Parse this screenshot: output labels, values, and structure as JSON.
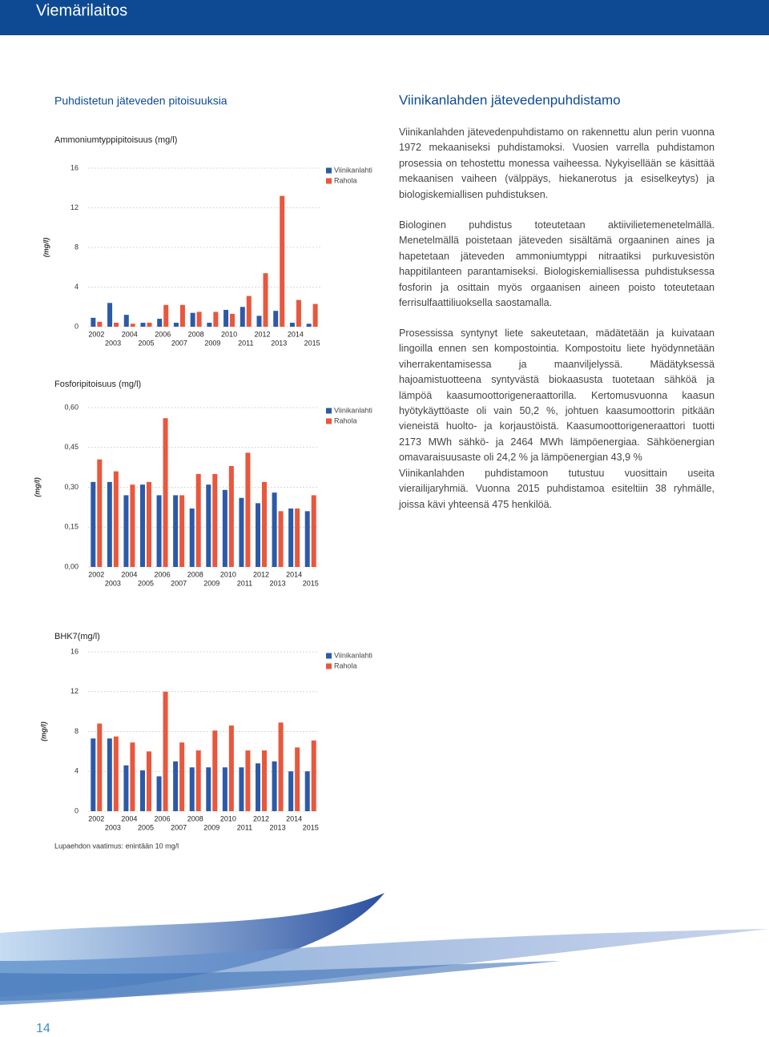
{
  "header": {
    "title": "Viemärilaitos"
  },
  "left": {
    "heading": "Puhdistetun jäteveden pitoisuuksia"
  },
  "chart_data": [
    {
      "type": "bar",
      "title": "Ammoniumtyppipitoisuus (mg/l)",
      "y_label": "(mg/l)",
      "categories": [
        "2002",
        "2003",
        "2004",
        "2005",
        "2006",
        "2007",
        "2008",
        "2009",
        "2010",
        "2011",
        "2012",
        "2013",
        "2014",
        "2015"
      ],
      "series": [
        {
          "name": "Viinikanlahti",
          "color": "#2c5aa8",
          "values": [
            0.9,
            2.4,
            1.2,
            0.4,
            0.8,
            0.4,
            1.4,
            0.4,
            1.7,
            2.0,
            1.1,
            1.6,
            0.4,
            0.3
          ]
        },
        {
          "name": "Rahola",
          "color": "#e9573c",
          "values": [
            0.5,
            0.4,
            0.3,
            0.4,
            2.2,
            2.2,
            1.5,
            1.5,
            1.3,
            3.1,
            5.4,
            13.2,
            2.7,
            2.3
          ]
        }
      ],
      "ylim": [
        0,
        16
      ],
      "yticks": [
        0,
        4,
        8,
        12,
        16
      ],
      "grid": true,
      "legend": "top-right"
    },
    {
      "type": "bar",
      "title": "Fosforipitoisuus (mg/l)",
      "y_label": "(mg/l)",
      "categories": [
        "2002",
        "2003",
        "2004",
        "2005",
        "2006",
        "2007",
        "2008",
        "2009",
        "2010",
        "2011",
        "2012",
        "2013",
        "2014",
        "2015"
      ],
      "series": [
        {
          "name": "Viinikanlahti",
          "color": "#2c5aa8",
          "values": [
            0.32,
            0.32,
            0.27,
            0.31,
            0.27,
            0.27,
            0.22,
            0.31,
            0.29,
            0.26,
            0.24,
            0.28,
            0.22,
            0.21
          ]
        },
        {
          "name": "Rahola",
          "color": "#e9573c",
          "values": [
            0.405,
            0.36,
            0.31,
            0.32,
            0.56,
            0.27,
            0.35,
            0.35,
            0.38,
            0.43,
            0.32,
            0.21,
            0.22,
            0.27
          ]
        }
      ],
      "ylim": [
        0,
        0.6
      ],
      "yticks": [
        {
          "value": 0,
          "label": "0,00"
        },
        {
          "value": 0.15,
          "label": "0,15"
        },
        {
          "value": 0.3,
          "label": "0,30"
        },
        {
          "value": 0.45,
          "label": "0,45"
        },
        {
          "value": 0.6,
          "label": "0,60"
        }
      ],
      "grid": true,
      "legend": "top-right"
    },
    {
      "type": "bar",
      "title": "BHK7(mg/l)",
      "y_label": "(mg/l)",
      "categories": [
        "2002",
        "2003",
        "2004",
        "2005",
        "2006",
        "2007",
        "2008",
        "2009",
        "2010",
        "2011",
        "2012",
        "2013",
        "2014",
        "2015"
      ],
      "series": [
        {
          "name": "Viinikanlahti",
          "color": "#2c5aa8",
          "values": [
            7.3,
            7.3,
            4.6,
            4.1,
            3.5,
            5.0,
            4.4,
            4.4,
            4.4,
            4.4,
            4.8,
            5.0,
            4.0,
            4.0
          ]
        },
        {
          "name": "Rahola",
          "color": "#e9573c",
          "values": [
            8.8,
            7.5,
            6.9,
            6.0,
            12.0,
            6.9,
            6.1,
            8.1,
            8.6,
            6.1,
            6.1,
            8.9,
            6.4,
            7.1
          ]
        }
      ],
      "ylim": [
        0,
        16
      ],
      "yticks": [
        0,
        4,
        8,
        12,
        16
      ],
      "grid": true,
      "legend": "top-right"
    }
  ],
  "footnote": "Lupaehdon vaatimus: enintään 10 mg/l",
  "article": {
    "heading": "Viinikanlahden jätevedenpuhdistamo",
    "paragraphs": [
      "Viinikanlahden jätevedenpuhdistamo on rakennettu alun perin vuonna 1972 mekaaniseksi puhdistamoksi. Vuosien varrella puhdistamon prosessia on tehostettu monessa vaiheessa. Nykyisellään se käsittää mekaanisen vaiheen (välppäys, hiekanerotus ja esiselkeytys) ja biologiskemiallisen puhdistuksen.",
      "Biologinen puhdistus toteutetaan aktiivilietemenetelmällä. Menetelmällä poistetaan jäteveden sisältämä orgaaninen aines ja hapetetaan jäteveden ammoniumtyppi nitraatiksi purkuvesistön happitilanteen parantamiseksi. Biologiskemiallisessa puhdistuksessa fosforin ja osittain myös orgaanisen aineen poisto toteutetaan ferrisulfaattiliuoksella saostamalla.",
      "Prosessissa syntynyt liete sakeutetaan, mädätetään ja kuivataan lingoilla ennen sen kompostointia. Kompostoitu liete hyödynnetään viherrakentamisessa ja maanviljelyssä. Mädätyksessä hajoamistuotteena syntyvästä biokaasusta tuotetaan sähköä ja lämpöä kaasumoottorigeneraattorilla. Kertomusvuonna kaasun hyötykäyttöaste oli vain 50,2 %, johtuen kaasumoottorin pitkään vieneistä huolto- ja korjaustöistä. Kaasumoottorigeneraattori tuotti 2173 MWh sähkö- ja 2464 MWh lämpöenergiaa. Sähköenergian omavaraisuusaste oli 24,2 % ja lämpöenergian 43,9 %",
      "Viinikanlahden puhdistamoon tutustuu vuosittain useita vierailijaryhmiä. Vuonna 2015 puhdistamoa esiteltiin 38 ryhmälle, joissa kävi yhteensä 475 henkilöä."
    ]
  },
  "page_number": "14"
}
